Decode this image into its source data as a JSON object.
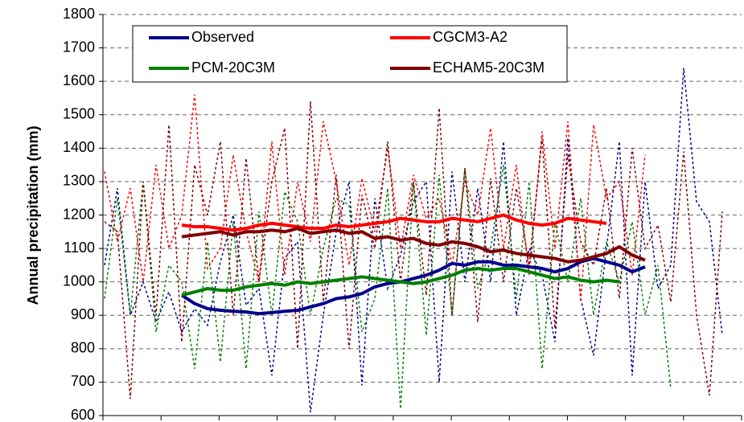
{
  "chart_data": {
    "type": "line",
    "y_label": "Annual precipitation (mm)",
    "ylim": [
      600,
      1800
    ],
    "yticks": [
      600,
      700,
      800,
      900,
      1000,
      1100,
      1200,
      1300,
      1400,
      1500,
      1600,
      1700,
      1800
    ],
    "grid": true,
    "series": [
      {
        "name": "Observed",
        "color": "#00008b",
        "values": [
          null,
          null,
          null,
          null,
          null,
          null,
          960,
          935,
          920,
          915,
          912,
          910,
          905,
          908,
          912,
          915,
          925,
          935,
          950,
          955,
          965,
          985,
          995,
          1000,
          1010,
          1020,
          1035,
          1055,
          1050,
          1060,
          1060,
          1050,
          1050,
          1045,
          1040,
          1030,
          1040,
          1060,
          1070,
          1060,
          1050,
          1030,
          1045,
          null,
          null,
          null,
          null,
          null,
          null,
          null
        ],
        "annual_values": [
          1050,
          1280,
          900,
          1000,
          880,
          970,
          850,
          920,
          870,
          1060,
          1200,
          930,
          980,
          720,
          1070,
          1120,
          610,
          900,
          1150,
          1300,
          690,
          1250,
          980,
          1080,
          1240,
          1300,
          700,
          1330,
          1000,
          1280,
          1000,
          1420,
          900,
          1100,
          1020,
          820,
          1430,
          950,
          780,
          1100,
          1420,
          720,
          1300,
          980,
          1050,
          1640,
          1240,
          1180,
          840,
          null
        ]
      },
      {
        "name": "CGCM3-A2",
        "color": "#ff0000",
        "values": [
          null,
          null,
          null,
          null,
          null,
          null,
          1170,
          1165,
          1165,
          1160,
          1155,
          1160,
          1170,
          1175,
          1170,
          1165,
          1160,
          1160,
          1170,
          1165,
          1170,
          1175,
          1180,
          1190,
          1185,
          1180,
          1180,
          1190,
          1185,
          1180,
          1190,
          1200,
          1185,
          1175,
          1170,
          1175,
          1190,
          1185,
          1180,
          1175,
          null,
          null,
          null,
          null,
          null,
          null,
          null,
          null,
          null,
          null
        ],
        "annual_values": [
          1330,
          1120,
          1280,
          1000,
          1350,
          1100,
          1200,
          1560,
          1040,
          1100,
          1380,
          1150,
          1000,
          1420,
          1020,
          1300,
          1120,
          1480,
          1300,
          1050,
          1310,
          1150,
          1400,
          1100,
          1320,
          1190,
          1250,
          1050,
          1300,
          1200,
          1460,
          1100,
          1350,
          1020,
          1450,
          1100,
          1480,
          940,
          1470,
          1250,
          1300,
          1020,
          1380,
          null,
          null,
          null,
          null,
          null,
          null,
          null
        ]
      },
      {
        "name": "PCM-20C3M",
        "color": "#008000",
        "values": [
          null,
          null,
          null,
          null,
          null,
          null,
          960,
          970,
          980,
          975,
          975,
          985,
          990,
          995,
          990,
          1000,
          995,
          1000,
          1005,
          1010,
          1015,
          1010,
          1005,
          1000,
          995,
          1000,
          1010,
          1020,
          1035,
          1040,
          1035,
          1040,
          1040,
          1030,
          1020,
          1010,
          1015,
          1005,
          1000,
          1005,
          1000,
          null,
          null,
          null,
          null,
          null,
          null,
          null,
          null,
          null
        ],
        "annual_values": [
          950,
          1250,
          900,
          1300,
          850,
          1050,
          1000,
          740,
          1120,
          760,
          1180,
          740,
          1210,
          900,
          1270,
          1180,
          900,
          1100,
          1250,
          1230,
          850,
          950,
          1280,
          620,
          1300,
          840,
          1320,
          900,
          1340,
          980,
          1100,
          1350,
          950,
          1300,
          740,
          1180,
          1000,
          1250,
          900,
          1120,
          1000,
          1180,
          900,
          1050,
          680,
          null,
          null,
          null,
          null,
          null
        ]
      },
      {
        "name": "ECHAM5-20C3M",
        "color": "#800000",
        "values": [
          null,
          null,
          null,
          null,
          null,
          null,
          1135,
          1140,
          1145,
          1150,
          1140,
          1150,
          1150,
          1155,
          1150,
          1160,
          1145,
          1150,
          1155,
          1145,
          1150,
          1130,
          1135,
          1125,
          1130,
          1115,
          1110,
          1120,
          1115,
          1105,
          1090,
          1095,
          1085,
          1080,
          1075,
          1070,
          1060,
          1065,
          1075,
          1085,
          1105,
          1080,
          1065,
          null,
          null,
          null,
          null,
          null,
          null,
          null
        ],
        "annual_values": [
          1180,
          1150,
          650,
          1300,
          900,
          1470,
          820,
          1350,
          1200,
          1420,
          900,
          1370,
          1000,
          1300,
          1460,
          800,
          1540,
          940,
          1320,
          800,
          1260,
          1100,
          1420,
          1000,
          1300,
          960,
          1520,
          900,
          1340,
          880,
          1310,
          1000,
          1280,
          1050,
          1430,
          860,
          1380,
          1120,
          1050,
          1280,
          950,
          1400,
          1100,
          1170,
          940,
          1390,
          900,
          660,
          1210,
          null
        ]
      }
    ]
  }
}
